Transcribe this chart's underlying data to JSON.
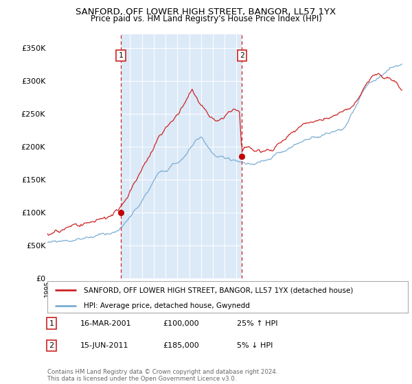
{
  "title": "SANFORD, OFF LOWER HIGH STREET, BANGOR, LL57 1YX",
  "subtitle": "Price paid vs. HM Land Registry's House Price Index (HPI)",
  "ylabel_ticks": [
    "£0",
    "£50K",
    "£100K",
    "£150K",
    "£200K",
    "£250K",
    "£300K",
    "£350K"
  ],
  "ytick_vals": [
    0,
    50000,
    100000,
    150000,
    200000,
    250000,
    300000,
    350000
  ],
  "ylim": [
    0,
    370000
  ],
  "xlim_start": 1995.0,
  "xlim_end": 2025.5,
  "background_color": "#ffffff",
  "shade_color": "#dce9f7",
  "hpi_color": "#7aadd4",
  "price_color": "#cc2222",
  "legend_label_price": "SANFORD, OFF LOWER HIGH STREET, BANGOR, LL57 1YX (detached house)",
  "legend_label_hpi": "HPI: Average price, detached house, Gwynedd",
  "marker1_x": 2001.21,
  "marker1_y": 100000,
  "marker1_label": "1",
  "marker2_x": 2011.46,
  "marker2_y": 185000,
  "marker2_label": "2",
  "table_row1": [
    "1",
    "16-MAR-2001",
    "£100,000",
    "25% ↑ HPI"
  ],
  "table_row2": [
    "2",
    "15-JUN-2011",
    "£185,000",
    "5% ↓ HPI"
  ],
  "footer": "Contains HM Land Registry data © Crown copyright and database right 2024.\nThis data is licensed under the Open Government Licence v3.0.",
  "vline1_x": 2001.21,
  "vline2_x": 2011.46,
  "hpi_base": [
    [
      1995.0,
      55000
    ],
    [
      1995.5,
      56000
    ],
    [
      1996.0,
      57500
    ],
    [
      1996.5,
      59000
    ],
    [
      1997.0,
      61000
    ],
    [
      1997.5,
      63000
    ],
    [
      1998.0,
      65500
    ],
    [
      1998.5,
      67500
    ],
    [
      1999.0,
      70000
    ],
    [
      1999.5,
      73000
    ],
    [
      2000.0,
      76000
    ],
    [
      2000.5,
      79000
    ],
    [
      2001.0,
      82000
    ],
    [
      2001.5,
      90000
    ],
    [
      2002.0,
      100000
    ],
    [
      2002.5,
      112000
    ],
    [
      2003.0,
      125000
    ],
    [
      2003.5,
      138000
    ],
    [
      2004.0,
      152000
    ],
    [
      2004.5,
      162000
    ],
    [
      2005.0,
      168000
    ],
    [
      2005.5,
      173000
    ],
    [
      2006.0,
      178000
    ],
    [
      2006.5,
      185000
    ],
    [
      2007.0,
      195000
    ],
    [
      2007.5,
      210000
    ],
    [
      2008.0,
      215000
    ],
    [
      2008.5,
      205000
    ],
    [
      2009.0,
      192000
    ],
    [
      2009.5,
      185000
    ],
    [
      2010.0,
      183000
    ],
    [
      2010.5,
      182000
    ],
    [
      2011.0,
      182000
    ],
    [
      2011.5,
      178000
    ],
    [
      2012.0,
      175000
    ],
    [
      2012.5,
      172000
    ],
    [
      2013.0,
      173000
    ],
    [
      2013.5,
      175000
    ],
    [
      2014.0,
      178000
    ],
    [
      2014.5,
      182000
    ],
    [
      2015.0,
      185000
    ],
    [
      2015.5,
      188000
    ],
    [
      2016.0,
      192000
    ],
    [
      2016.5,
      196000
    ],
    [
      2017.0,
      200000
    ],
    [
      2017.5,
      205000
    ],
    [
      2018.0,
      208000
    ],
    [
      2018.5,
      212000
    ],
    [
      2019.0,
      215000
    ],
    [
      2019.5,
      218000
    ],
    [
      2020.0,
      222000
    ],
    [
      2020.5,
      235000
    ],
    [
      2021.0,
      250000
    ],
    [
      2021.5,
      268000
    ],
    [
      2022.0,
      282000
    ],
    [
      2022.5,
      290000
    ],
    [
      2023.0,
      295000
    ],
    [
      2023.5,
      300000
    ],
    [
      2024.0,
      305000
    ],
    [
      2024.5,
      310000
    ],
    [
      2025.0,
      312000
    ]
  ],
  "price_base": [
    [
      1995.0,
      68000
    ],
    [
      1995.5,
      70000
    ],
    [
      1996.0,
      72000
    ],
    [
      1996.5,
      73500
    ],
    [
      1997.0,
      75000
    ],
    [
      1997.5,
      77000
    ],
    [
      1998.0,
      79000
    ],
    [
      1998.5,
      81000
    ],
    [
      1999.0,
      83000
    ],
    [
      1999.5,
      86000
    ],
    [
      2000.0,
      89000
    ],
    [
      2000.5,
      93000
    ],
    [
      2001.0,
      97000
    ],
    [
      2001.5,
      108000
    ],
    [
      2002.0,
      122000
    ],
    [
      2002.5,
      140000
    ],
    [
      2003.0,
      160000
    ],
    [
      2003.5,
      178000
    ],
    [
      2004.0,
      195000
    ],
    [
      2004.5,
      210000
    ],
    [
      2005.0,
      220000
    ],
    [
      2005.5,
      232000
    ],
    [
      2006.0,
      242000
    ],
    [
      2006.5,
      255000
    ],
    [
      2007.0,
      272000
    ],
    [
      2007.25,
      283000
    ],
    [
      2007.5,
      275000
    ],
    [
      2007.75,
      265000
    ],
    [
      2008.0,
      258000
    ],
    [
      2008.5,
      248000
    ],
    [
      2009.0,
      238000
    ],
    [
      2009.5,
      235000
    ],
    [
      2010.0,
      240000
    ],
    [
      2010.5,
      248000
    ],
    [
      2010.75,
      252000
    ],
    [
      2011.0,
      248000
    ],
    [
      2011.25,
      243000
    ],
    [
      2011.46,
      185000
    ],
    [
      2011.6,
      190000
    ],
    [
      2012.0,
      195000
    ],
    [
      2012.5,
      188000
    ],
    [
      2013.0,
      185000
    ],
    [
      2013.5,
      188000
    ],
    [
      2014.0,
      192000
    ],
    [
      2014.5,
      198000
    ],
    [
      2015.0,
      202000
    ],
    [
      2015.5,
      208000
    ],
    [
      2016.0,
      213000
    ],
    [
      2016.5,
      218000
    ],
    [
      2017.0,
      222000
    ],
    [
      2017.5,
      228000
    ],
    [
      2018.0,
      232000
    ],
    [
      2018.5,
      235000
    ],
    [
      2019.0,
      238000
    ],
    [
      2019.5,
      241000
    ],
    [
      2020.0,
      245000
    ],
    [
      2020.5,
      252000
    ],
    [
      2021.0,
      260000
    ],
    [
      2021.5,
      270000
    ],
    [
      2022.0,
      285000
    ],
    [
      2022.5,
      295000
    ],
    [
      2023.0,
      298000
    ],
    [
      2023.5,
      290000
    ],
    [
      2024.0,
      288000
    ],
    [
      2024.5,
      278000
    ],
    [
      2025.0,
      268000
    ]
  ]
}
